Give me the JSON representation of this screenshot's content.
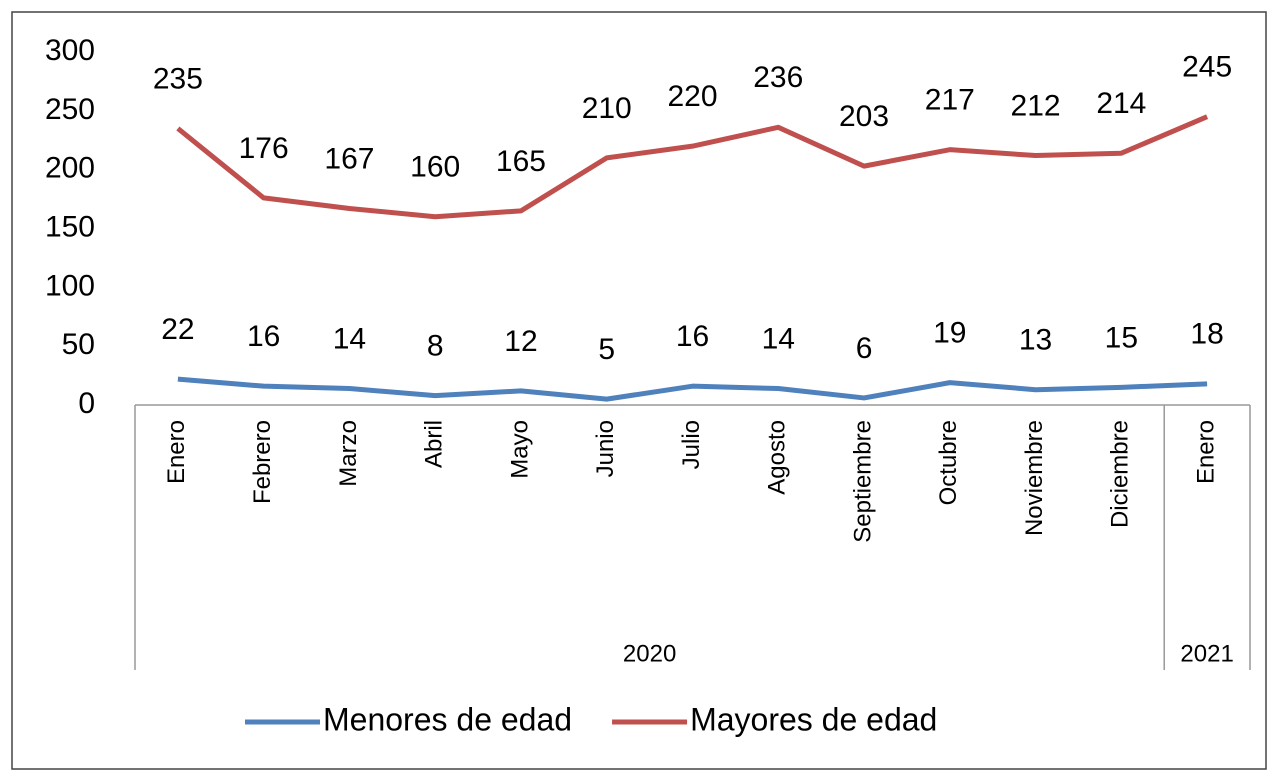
{
  "chart_data": {
    "type": "line",
    "categories": [
      "Enero",
      "Febrero",
      "Marzo",
      "Abril",
      "Mayo",
      "Junio",
      "Julio",
      "Agosto",
      "Septiembre",
      "Octubre",
      "Noviembre",
      "Diciembre",
      "Enero"
    ],
    "category_groups": [
      {
        "label": "2020",
        "span": 12
      },
      {
        "label": "2021",
        "span": 1
      }
    ],
    "series": [
      {
        "name": "Menores de edad",
        "color": "#4f81bd",
        "values": [
          22,
          16,
          14,
          8,
          12,
          5,
          16,
          14,
          6,
          19,
          13,
          15,
          18
        ]
      },
      {
        "name": "Mayores de edad",
        "color": "#c0504d",
        "values": [
          235,
          176,
          167,
          160,
          165,
          210,
          220,
          236,
          203,
          217,
          212,
          214,
          245
        ]
      }
    ],
    "ylim": [
      0,
      300
    ],
    "yticks": [
      0,
      50,
      100,
      150,
      200,
      250,
      300
    ],
    "legend": "bottom"
  }
}
